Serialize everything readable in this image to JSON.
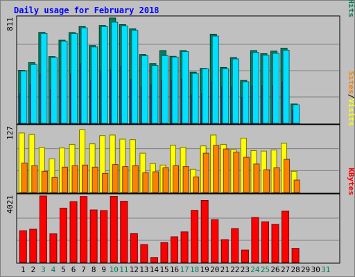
{
  "colors": {
    "background": "#c0c0c0",
    "plot": "#c0c0c0",
    "grid": "#808080",
    "title": "#0000ff",
    "hits": "#00805c",
    "files": "#0040ff",
    "pages": "#00e0ff",
    "visits": "#ffff00",
    "sites": "#ff8000",
    "kbytes": "#ff0000",
    "weekend_day": "#00805c",
    "weekday": "#000000"
  },
  "chart_data": {
    "type": "bar",
    "title": "Daily usage for February 2018",
    "days": [
      1,
      2,
      3,
      4,
      5,
      6,
      7,
      8,
      9,
      10,
      11,
      12,
      13,
      14,
      15,
      16,
      17,
      18,
      19,
      20,
      21,
      22,
      23,
      24,
      25,
      26,
      27,
      28,
      29,
      30,
      31
    ],
    "weekend_days": [
      3,
      4,
      10,
      11,
      17,
      18,
      24,
      25,
      31
    ],
    "panels": [
      {
        "id": "hits-files-pages",
        "max_label": "811",
        "axis_labels": [
          "Pages",
          "Files",
          "Hits"
        ],
        "axis_separators": [
          "/",
          "/"
        ],
        "max": 811,
        "series": [
          {
            "name": "Hits",
            "color_key": "hits",
            "values": [
              408,
              467,
              700,
              514,
              640,
              699,
              745,
              599,
              754,
              811,
              760,
              727,
              530,
              460,
              560,
              516,
              560,
              394,
              423,
              686,
              430,
              506,
              330,
              560,
              536,
              556,
              578,
              149,
              0,
              0,
              0
            ]
          },
          {
            "name": "Files",
            "color_key": "files",
            "values": [
              230,
              300,
              380,
              260,
              330,
              380,
              460,
              330,
              400,
              410,
              440,
              340,
              280,
              300,
              330,
              330,
              340,
              220,
              230,
              320,
              280,
              280,
              200,
              290,
              290,
              290,
              320,
              100,
              0,
              0,
              0
            ]
          },
          {
            "name": "Pages",
            "color_key": "pages",
            "values": [
              402,
              452,
              692,
              507,
              633,
              691,
              735,
              588,
              745,
              779,
              750,
              716,
              520,
              445,
              520,
              510,
              552,
              384,
              420,
              672,
              420,
              496,
              320,
              546,
              524,
              539,
              563,
              142,
              0,
              0,
              0
            ]
          }
        ]
      },
      {
        "id": "visits-sites",
        "max_label": "127",
        "axis_labels": [
          "Sites",
          "Visits"
        ],
        "axis_separators": [
          "/"
        ],
        "max": 127,
        "series": [
          {
            "name": "Visits",
            "color_key": "visits",
            "values": [
              115,
              112,
              87,
              65,
              86,
              93,
              121,
              94,
              110,
              111,
              103,
              102,
              76,
              56,
              53,
              91,
              87,
              45,
              90,
              111,
              93,
              83,
              105,
              81,
              80,
              82,
              95,
              41,
              0,
              0,
              0
            ]
          },
          {
            "name": "Sites",
            "color_key": "sites",
            "values": [
              57,
              52,
              41,
              29,
              49,
              52,
              53,
              49,
              37,
              54,
              50,
              52,
              38,
              40,
              48,
              52,
              50,
              30,
              76,
              91,
              84,
              78,
              68,
              55,
              44,
              48,
              64,
              24,
              0,
              0,
              0
            ]
          }
        ]
      },
      {
        "id": "kbytes",
        "max_label": "4021",
        "axis_labels": [
          "KBytes"
        ],
        "axis_separators": [],
        "max": 4021,
        "series": [
          {
            "name": "KBytes",
            "color_key": "kbytes",
            "values": [
              1920,
              2010,
              4021,
              1730,
              3280,
              3680,
              3990,
              3180,
              3140,
              4000,
              3700,
              1740,
              1080,
              300,
              1200,
              1550,
              1850,
              3150,
              3750,
              2590,
              1380,
              2050,
              750,
              2720,
              2460,
              2300,
              3100,
              850,
              0,
              0,
              0
            ]
          }
        ]
      }
    ],
    "grid": true
  }
}
